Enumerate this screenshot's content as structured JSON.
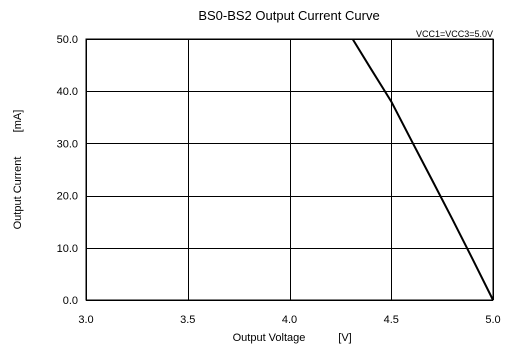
{
  "chart_data": {
    "type": "line",
    "title": "BS0-BS2 Output Current Curve",
    "annotation": "VCC1=VCC3=5.0V",
    "xlabel": {
      "text": "Output Voltage",
      "unit": "[V]"
    },
    "ylabel": {
      "text": "Output Current",
      "unit": "[mA]"
    },
    "xlim": [
      3.0,
      5.0
    ],
    "ylim": [
      0.0,
      50.0
    ],
    "x_ticks": [
      3.0,
      3.5,
      4.0,
      4.5,
      5.0
    ],
    "x_tick_labels": [
      "3.0",
      "3.5",
      "4.0",
      "4.5",
      "5.0"
    ],
    "y_ticks": [
      0.0,
      10.0,
      20.0,
      30.0,
      40.0,
      50.0
    ],
    "y_tick_labels": [
      "0.0",
      "10.0",
      "20.0",
      "30.0",
      "40.0",
      "50.0"
    ],
    "grid": true,
    "series": [
      {
        "color": "#000000",
        "x": [
          4.31,
          4.4,
          4.5,
          4.6,
          4.7,
          4.8,
          4.9,
          5.0
        ],
        "y": [
          50.0,
          44.3,
          38.0,
          30.5,
          23.0,
          15.5,
          7.8,
          0.0
        ]
      }
    ]
  }
}
